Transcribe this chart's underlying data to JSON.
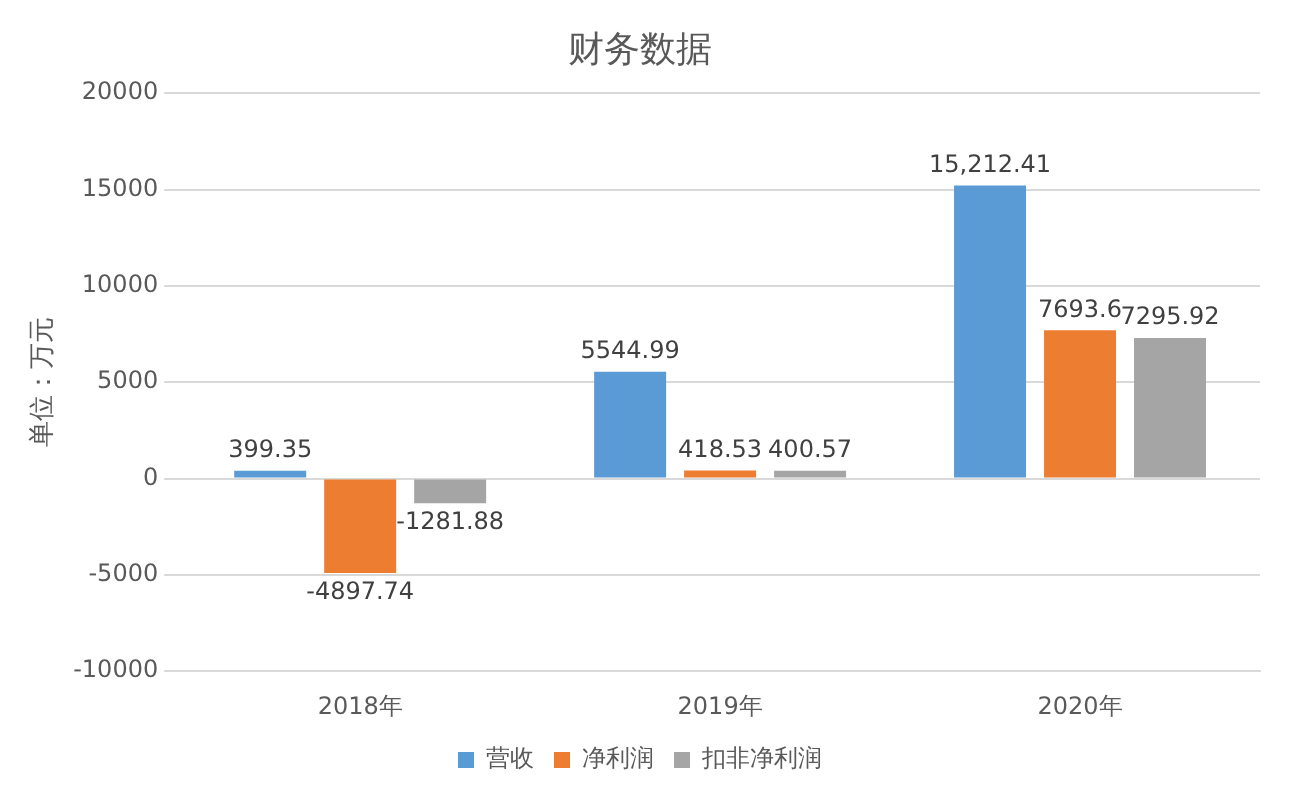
{
  "chart_data": {
    "type": "bar",
    "title": "财务数据",
    "ylabel": "单位：万元",
    "categories": [
      "2018年",
      "2019年",
      "2020年"
    ],
    "series": [
      {
        "name": "营收",
        "color": "#5b9bd5",
        "values": [
          399.35,
          5544.99,
          15212.41
        ],
        "value_labels": [
          "399.35",
          "5544.99",
          "15,212.41"
        ]
      },
      {
        "name": "净利润",
        "color": "#ed7d31",
        "values": [
          -4897.74,
          418.53,
          7693.6
        ],
        "value_labels": [
          "-4897.74",
          "418.53",
          "7693.6"
        ]
      },
      {
        "name": "扣非净利润",
        "color": "#a5a5a5",
        "values": [
          -1281.88,
          400.57,
          7295.92
        ],
        "value_labels": [
          "-1281.88",
          "400.57",
          "7295.92"
        ]
      }
    ],
    "ylim": [
      -10000,
      20000
    ],
    "yticks": [
      -10000,
      -5000,
      0,
      5000,
      10000,
      15000,
      20000
    ],
    "grid": "y",
    "legend": "bottom"
  }
}
